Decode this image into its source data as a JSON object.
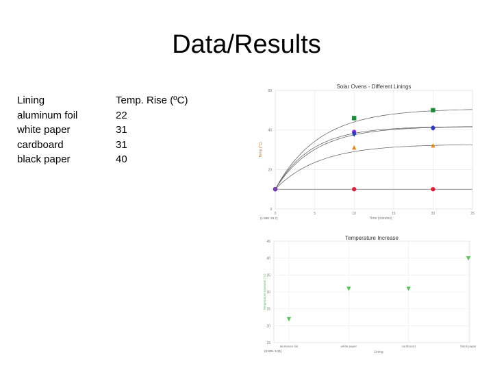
{
  "slide": {
    "title": "Data/Results",
    "table": {
      "headers": [
        "Lining",
        "Temp. Rise (ºC)"
      ],
      "rows": [
        [
          "aluminum foil",
          "22"
        ],
        [
          "white paper",
          "31"
        ],
        [
          "cardboard",
          "31"
        ],
        [
          "black paper",
          "40"
        ]
      ]
    }
  },
  "chart_data": [
    {
      "type": "line",
      "title": "Solar Ovens - Different Linings",
      "xlabel": "Time (minutes)",
      "ylabel": "Temp (°C)",
      "xlim": [
        0,
        25
      ],
      "ylim": [
        0,
        60
      ],
      "xticks": [
        "0",
        "5",
        "10",
        "15",
        "20",
        "25"
      ],
      "yticks": [
        "0",
        "20",
        "40",
        "60"
      ],
      "coordinate_readout": "(1.568, 24.7)",
      "grid": true,
      "series": [
        {
          "color": "#1f8a3a",
          "marker": "square",
          "x": [
            0,
            10,
            20
          ],
          "y": [
            10,
            46,
            50
          ]
        },
        {
          "color": "#8a2be2",
          "marker": "circle",
          "x": [
            0,
            10,
            20
          ],
          "y": [
            10,
            39,
            41
          ]
        },
        {
          "color": "#2a3fb8",
          "marker": "diamond",
          "x": [
            0,
            10,
            20
          ],
          "y": [
            10,
            38,
            41
          ]
        },
        {
          "color": "#e08a1e",
          "marker": "triangle",
          "x": [
            0,
            10,
            20
          ],
          "y": [
            10,
            31,
            32
          ]
        },
        {
          "color": "#d9203a",
          "marker": "circle",
          "x": [
            0,
            10,
            20
          ],
          "y": [
            10,
            10,
            10
          ]
        }
      ]
    },
    {
      "type": "scatter",
      "title": "Temperature Increase",
      "xlabel": "Lining",
      "ylabel": "Temperature Increase (°C)",
      "categories": [
        "aluminum foil",
        "white paper",
        "cardboard",
        "black paper"
      ],
      "values": [
        22,
        31,
        31,
        40
      ],
      "ylim": [
        15,
        45
      ],
      "yticks": [
        "15",
        "20",
        "25",
        "30",
        "35",
        "40",
        "45"
      ],
      "coordinate_readout": "(3.525, 9.31)",
      "color": "#5cc25c",
      "marker": "triangle-down",
      "grid": true
    }
  ]
}
